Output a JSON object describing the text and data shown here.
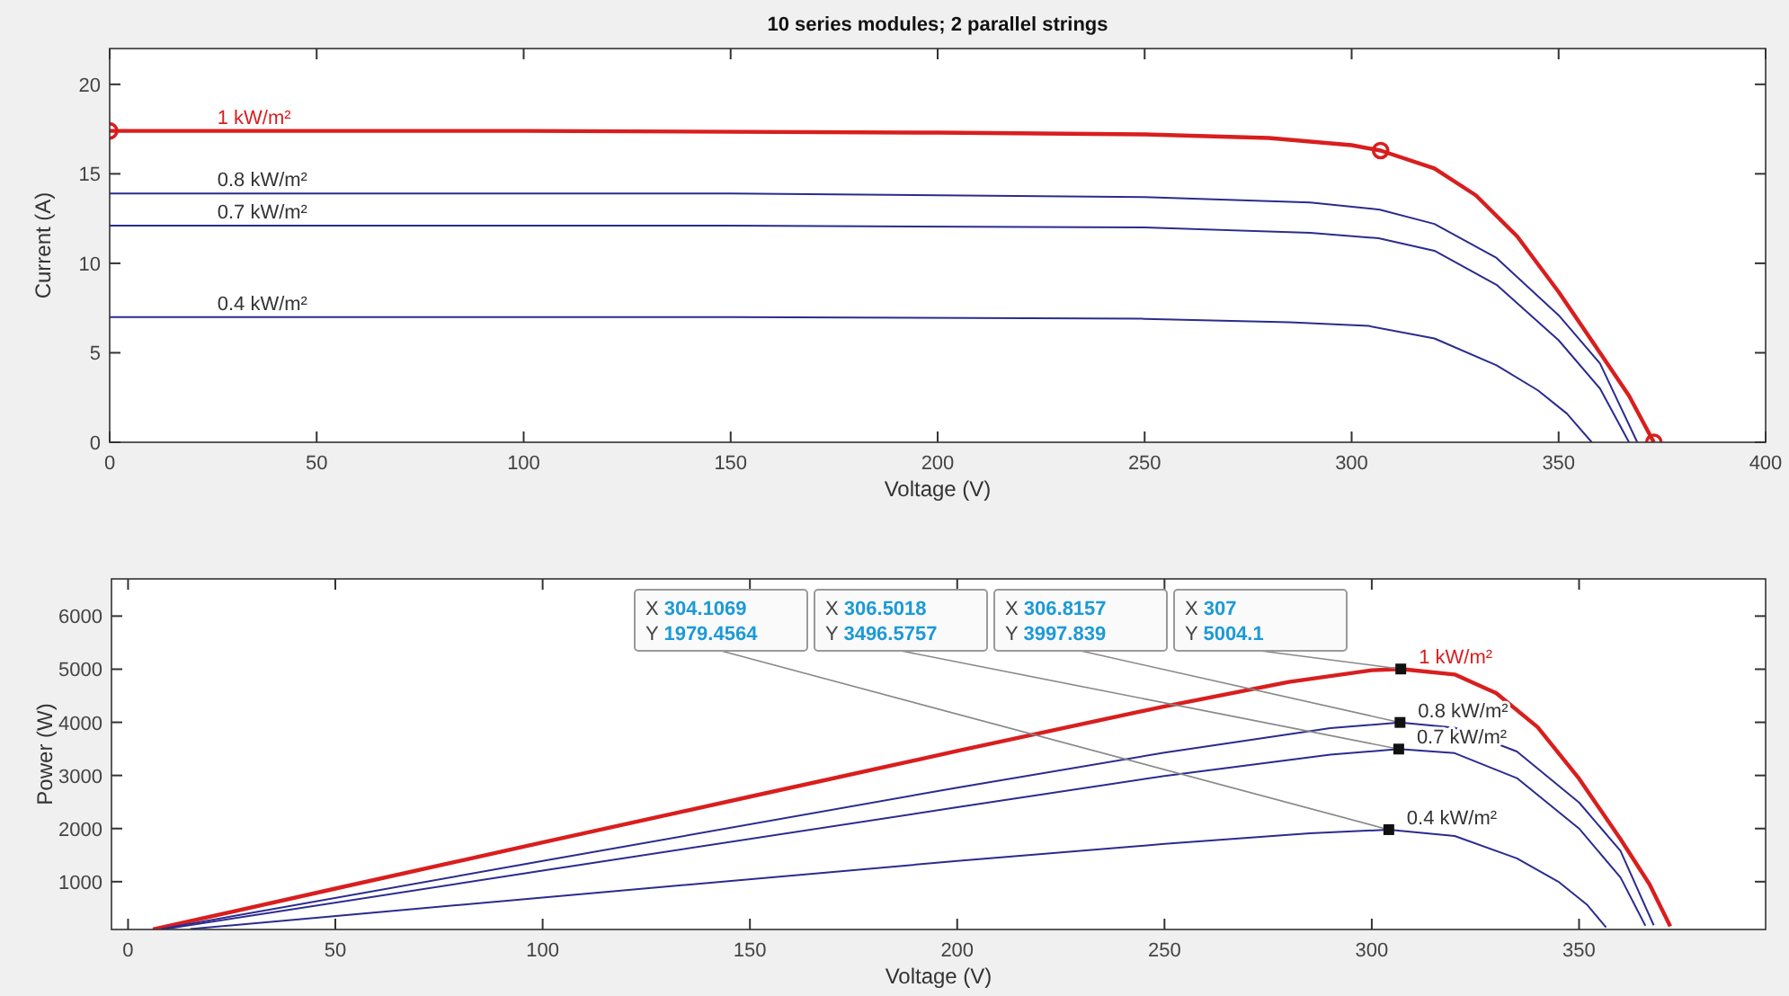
{
  "chart_data": [
    {
      "type": "line",
      "title": "10 series modules; 2 parallel strings",
      "xlabel": "Voltage (V)",
      "ylabel": "Current (A)",
      "xlim": [
        0,
        400
      ],
      "xticks": [
        0,
        50,
        100,
        150,
        200,
        250,
        300,
        350,
        400
      ],
      "ylim": [
        0,
        22
      ],
      "yticks": [
        0,
        5,
        10,
        15,
        20
      ],
      "series": [
        {
          "name": "1 kW/m²",
          "color": "#d91e1e",
          "x": [
            0,
            100,
            200,
            250,
            280,
            300,
            307,
            320,
            330,
            340,
            350,
            360,
            367,
            373
          ],
          "values": [
            17.4,
            17.4,
            17.3,
            17.2,
            17.0,
            16.6,
            16.3,
            15.3,
            13.8,
            11.5,
            8.4,
            5.0,
            2.6,
            0
          ]
        },
        {
          "name": "0.8 kW/m²",
          "color": "#2b2b8f",
          "x": [
            0,
            150,
            250,
            290,
            306.8,
            320,
            335,
            350,
            360,
            369
          ],
          "values": [
            13.9,
            13.9,
            13.7,
            13.4,
            13.0,
            12.2,
            10.3,
            7.1,
            4.4,
            0
          ]
        },
        {
          "name": "0.7 kW/m²",
          "color": "#2b2b8f",
          "x": [
            0,
            150,
            250,
            290,
            306.5,
            320,
            335,
            350,
            360,
            367
          ],
          "values": [
            12.1,
            12.1,
            12.0,
            11.7,
            11.4,
            10.7,
            8.8,
            5.7,
            3.0,
            0
          ]
        },
        {
          "name": "0.4 kW/m²",
          "color": "#2b2b8f",
          "x": [
            0,
            150,
            250,
            285,
            304.1,
            320,
            335,
            345,
            352,
            358
          ],
          "values": [
            7.0,
            7.0,
            6.9,
            6.7,
            6.5,
            5.8,
            4.3,
            2.9,
            1.6,
            0
          ]
        },
        {
          "type": "scatter",
          "marker": "circle",
          "color": "#d91e1e",
          "x": [
            0,
            307,
            373
          ],
          "values": [
            17.4,
            16.3,
            0
          ]
        }
      ]
    },
    {
      "type": "line",
      "xlabel": "Voltage (V)",
      "ylabel": "Power (W)",
      "xlim": [
        -4,
        395
      ],
      "xticks": [
        0,
        50,
        100,
        150,
        200,
        250,
        300,
        350
      ],
      "ylim": [
        100,
        6700
      ],
      "yticks": [
        1000,
        2000,
        3000,
        4000,
        5000,
        6000
      ],
      "series": [
        {
          "name": "1 kW/m²",
          "color": "#d91e1e",
          "x": [
            6,
            50,
            100,
            150,
            200,
            250,
            280,
            300,
            307,
            320,
            330,
            340,
            350,
            360,
            367,
            372
          ],
          "values": [
            100,
            870,
            1740,
            2600,
            3460,
            4300,
            4760,
            4980,
            5004.1,
            4900,
            4550,
            3910,
            2940,
            1800,
            950,
            160
          ]
        },
        {
          "name": "0.8 kW/m²",
          "color": "#2b2b8f",
          "x": [
            8,
            100,
            200,
            250,
            290,
            306.8157,
            320,
            335,
            350,
            360,
            368
          ],
          "values": [
            110,
            1390,
            2770,
            3430,
            3890,
            3997.839,
            3900,
            3450,
            2490,
            1580,
            180
          ]
        },
        {
          "name": "0.7 kW/m²",
          "color": "#2b2b8f",
          "x": [
            9,
            100,
            200,
            250,
            290,
            306.5018,
            320,
            335,
            350,
            360,
            366
          ],
          "values": [
            110,
            1210,
            2400,
            2990,
            3390,
            3496.5757,
            3420,
            2950,
            2000,
            1080,
            170
          ]
        },
        {
          "name": "0.4 kW/m²",
          "color": "#2b2b8f",
          "x": [
            15,
            100,
            200,
            250,
            285,
            304.1069,
            320,
            335,
            345,
            352,
            356.5
          ],
          "values": [
            110,
            700,
            1390,
            1710,
            1910,
            1979.4564,
            1860,
            1440,
            1000,
            560,
            140
          ]
        }
      ],
      "annotations": [
        {
          "text": "X 307\nY 5004.1",
          "x": 307,
          "y": 5004.1
        },
        {
          "text": "X 306.8157\nY 3997.839",
          "x": 306.8157,
          "y": 3997.839
        },
        {
          "text": "X 306.5018\nY 3496.5757",
          "x": 306.5018,
          "y": 3496.5757
        },
        {
          "text": "X 304.1069\nY 1979.4564",
          "x": 304.1069,
          "y": 1979.4564
        }
      ]
    }
  ]
}
